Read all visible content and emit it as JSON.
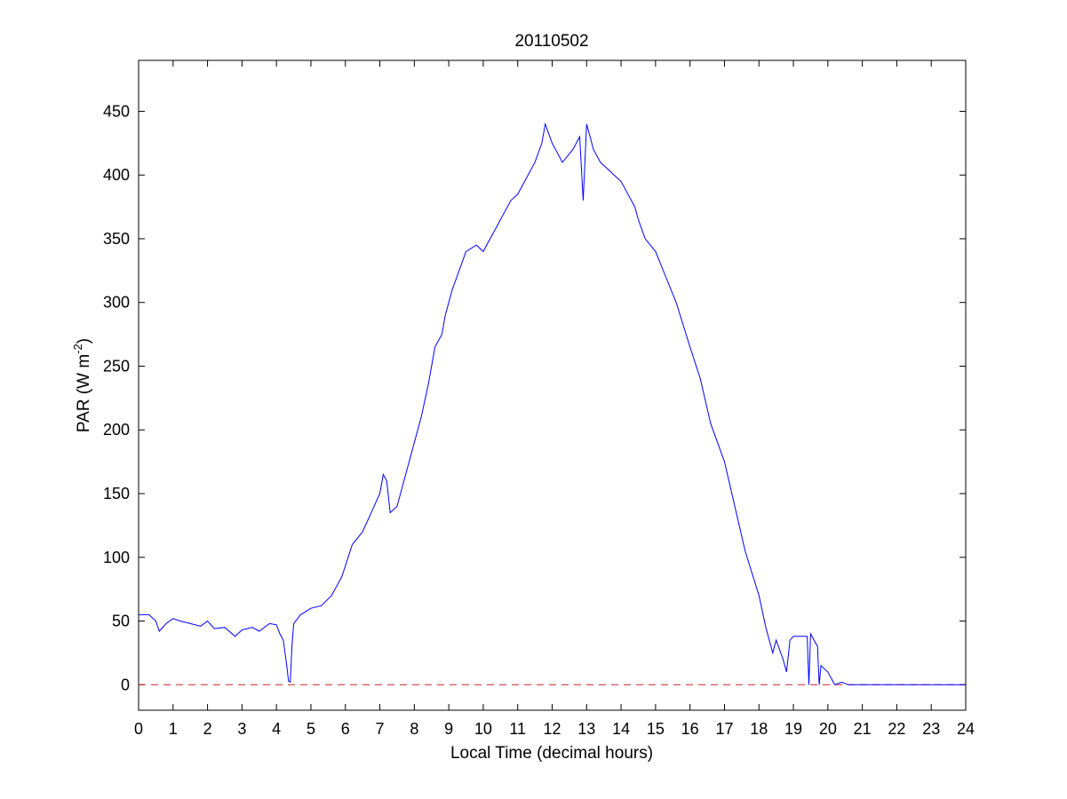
{
  "chart_data": {
    "type": "line",
    "title": "20110502",
    "xlabel": "Local Time (decimal hours)",
    "ylabel": {
      "prefix": "PAR (W m",
      "superscript": "-2",
      "suffix": ")"
    },
    "xlim": [
      0,
      24
    ],
    "ylim": [
      -20,
      490
    ],
    "xticks": [
      "0",
      "1",
      "2",
      "3",
      "4",
      "5",
      "6",
      "7",
      "8",
      "9",
      "10",
      "11",
      "12",
      "13",
      "14",
      "15",
      "16",
      "17",
      "18",
      "19",
      "20",
      "21",
      "22",
      "23",
      "24"
    ],
    "yticks": [
      "0",
      "50",
      "100",
      "150",
      "200",
      "250",
      "300",
      "350",
      "400",
      "450"
    ],
    "grid": false,
    "series": [
      {
        "color": "#0000ff",
        "x": [
          0,
          0.3,
          0.5,
          0.6,
          0.8,
          1.0,
          1.2,
          1.5,
          1.8,
          2.0,
          2.2,
          2.5,
          2.8,
          3.0,
          3.3,
          3.5,
          3.8,
          4.0,
          4.1,
          4.2,
          4.3,
          4.35,
          4.4,
          4.45,
          4.5,
          4.7,
          5.0,
          5.3,
          5.6,
          5.9,
          6.2,
          6.5,
          6.8,
          7.0,
          7.1,
          7.2,
          7.3,
          7.5,
          7.7,
          8.0,
          8.2,
          8.4,
          8.6,
          8.8,
          8.9,
          9.0,
          9.1,
          9.3,
          9.5,
          9.8,
          10.0,
          10.3,
          10.6,
          10.8,
          11.0,
          11.2,
          11.5,
          11.7,
          11.8,
          12.0,
          12.3,
          12.6,
          12.8,
          12.9,
          13.0,
          13.1,
          13.2,
          13.4,
          13.6,
          13.8,
          14.0,
          14.2,
          14.4,
          14.5,
          14.7,
          15.0,
          15.3,
          15.6,
          16.0,
          16.3,
          16.6,
          17.0,
          17.3,
          17.6,
          18.0,
          18.2,
          18.4,
          18.5,
          18.7,
          18.8,
          18.9,
          19.0,
          19.2,
          19.4,
          19.45,
          19.5,
          19.6,
          19.7,
          19.75,
          19.8,
          20.0,
          20.1,
          20.2,
          20.4,
          20.6,
          20.8,
          21.0,
          22.0,
          23.0,
          24.0
        ],
        "y": [
          55,
          55,
          50,
          42,
          48,
          52,
          50,
          48,
          46,
          50,
          44,
          45,
          38,
          43,
          45,
          42,
          48,
          47,
          40,
          35,
          15,
          3,
          2,
          30,
          48,
          55,
          60,
          62,
          70,
          85,
          110,
          120,
          138,
          150,
          165,
          160,
          135,
          140,
          160,
          190,
          210,
          235,
          265,
          275,
          290,
          300,
          310,
          325,
          340,
          345,
          340,
          355,
          370,
          380,
          385,
          395,
          410,
          425,
          440,
          425,
          410,
          420,
          430,
          380,
          440,
          430,
          420,
          410,
          405,
          400,
          395,
          385,
          375,
          365,
          350,
          340,
          320,
          300,
          265,
          240,
          205,
          175,
          140,
          105,
          70,
          45,
          25,
          35,
          20,
          10,
          35,
          38,
          38,
          38,
          0,
          40,
          35,
          30,
          0,
          15,
          10,
          5,
          0,
          2,
          0,
          0,
          0,
          0,
          0,
          0
        ]
      }
    ],
    "reference_line": {
      "y": 0,
      "color": "#cc2222",
      "style": "dashed"
    }
  }
}
